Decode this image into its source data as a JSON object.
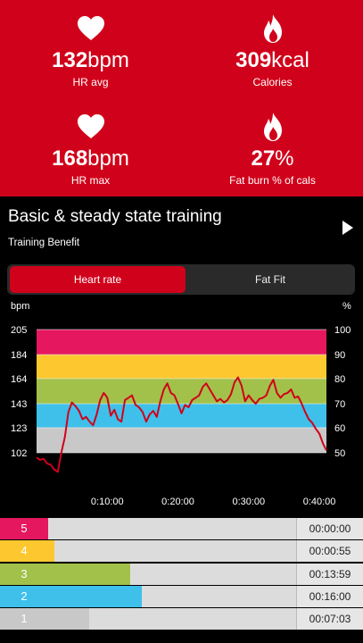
{
  "stats": [
    {
      "value": "132",
      "unit": "bpm",
      "label": "HR avg",
      "icon": "heart-icon"
    },
    {
      "value": "309",
      "unit": "kcal",
      "label": "Calories",
      "icon": "flame-icon"
    },
    {
      "value": "168",
      "unit": "bpm",
      "label": "HR max",
      "icon": "heart-icon"
    },
    {
      "value": "27",
      "unit": "%",
      "label": "Fat burn % of cals",
      "icon": "flame-icon"
    }
  ],
  "colors": {
    "accent": "#d0021b",
    "zone5": "#e5175f",
    "zone4": "#fdc82f",
    "zone3": "#a2c14a",
    "zone2": "#3fc0ea",
    "zone1": "#c8c8c8",
    "line": "#d0021b"
  },
  "header": {
    "title": "Basic & steady state training",
    "subtitle": "Training Benefit"
  },
  "tabs": [
    {
      "label": "Heart rate",
      "active": true
    },
    {
      "label": "Fat Fit",
      "active": false
    }
  ],
  "chart_data": {
    "type": "line",
    "ylabel": "bpm",
    "ylabel_right": "%",
    "y_ticks": [
      "205",
      "184",
      "164",
      "143",
      "123",
      "102"
    ],
    "y_right_ticks": [
      "100",
      "90",
      "80",
      "70",
      "60",
      "50"
    ],
    "y_range": [
      102,
      205
    ],
    "x_ticks": [
      "0:10:00",
      "0:20:00",
      "0:30:00",
      "0:40:00"
    ],
    "x_tick_minutes": [
      10,
      20,
      30,
      40
    ],
    "x_range_minutes": [
      0,
      41
    ],
    "zones": [
      {
        "zone": 5,
        "from": 184,
        "to": 205
      },
      {
        "zone": 4,
        "from": 164,
        "to": 184
      },
      {
        "zone": 3,
        "from": 143,
        "to": 164
      },
      {
        "zone": 2,
        "from": 123,
        "to": 143
      },
      {
        "zone": 1,
        "from": 102,
        "to": 123
      }
    ],
    "series": [
      {
        "x": [
          0,
          0.5,
          1,
          1.5,
          2,
          2.5,
          3,
          3.5,
          4,
          4.5,
          5,
          5.5,
          6,
          6.5,
          7,
          7.5,
          8,
          8.5,
          9,
          9.5,
          10,
          10.5,
          11,
          11.5,
          12,
          12.5,
          13,
          13.5,
          14,
          14.5,
          15,
          15.5,
          16,
          16.5,
          17,
          17.5,
          18,
          18.5,
          19,
          19.5,
          20,
          20.5,
          21,
          21.5,
          22,
          22.5,
          23,
          23.5,
          24,
          24.5,
          25,
          25.5,
          26,
          26.5,
          27,
          27.5,
          28,
          28.5,
          29,
          29.5,
          30,
          30.5,
          31,
          31.5,
          32,
          32.5,
          33,
          33.5,
          34,
          34.5,
          35,
          35.5,
          36,
          36.5,
          37,
          37.5,
          38,
          38.5,
          39,
          39.5,
          40,
          40.5,
          41
        ],
        "y": [
          98,
          96,
          97,
          93,
          92,
          88,
          86,
          102,
          115,
          136,
          144,
          141,
          137,
          130,
          132,
          128,
          125,
          134,
          146,
          152,
          148,
          133,
          138,
          130,
          128,
          146,
          148,
          150,
          142,
          140,
          136,
          128,
          134,
          137,
          132,
          145,
          155,
          160,
          152,
          150,
          143,
          135,
          142,
          140,
          146,
          148,
          150,
          157,
          160,
          155,
          150,
          145,
          147,
          144,
          146,
          151,
          161,
          165,
          158,
          145,
          150,
          146,
          143,
          147,
          148,
          150,
          158,
          163,
          152,
          148,
          151,
          152,
          155,
          148,
          149,
          143,
          136,
          130,
          127,
          122,
          118,
          110,
          104
        ]
      }
    ]
  },
  "zone_rows": [
    {
      "zone": "5",
      "time": "00:00:00",
      "fraction": 0.0
    },
    {
      "zone": "4",
      "time": "00:00:55",
      "fraction": 0.025
    },
    {
      "zone": "3",
      "time": "00:13:59",
      "fraction": 0.33
    },
    {
      "zone": "2",
      "time": "00:16:00",
      "fraction": 0.377
    },
    {
      "zone": "1",
      "time": "00:07:03",
      "fraction": 0.166
    }
  ]
}
